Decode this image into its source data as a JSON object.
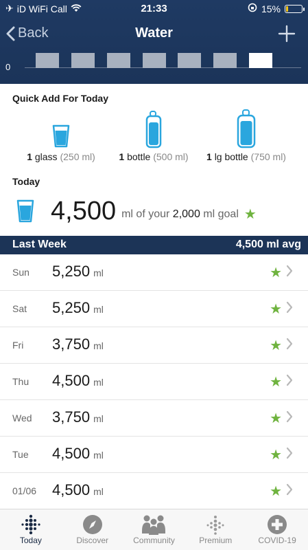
{
  "status": {
    "carrier": "iD WiFi Call",
    "time": "21:33",
    "battery": "15%",
    "battery_level": 0.15
  },
  "nav": {
    "back_label": "Back",
    "title": "Water"
  },
  "graph": {
    "zero_label": "0",
    "bars": 7
  },
  "quick_add": {
    "title": "Quick Add For Today",
    "items": [
      {
        "count": "1",
        "name": "glass",
        "volume": "(250 ml)",
        "icon": "glass-icon"
      },
      {
        "count": "1",
        "name": "bottle",
        "volume": "(500 ml)",
        "icon": "bottle-icon"
      },
      {
        "count": "1",
        "name": "lg bottle",
        "volume": "(750 ml)",
        "icon": "large-bottle-icon"
      }
    ]
  },
  "today": {
    "title": "Today",
    "amount": "4,500",
    "prefix": "ml of your",
    "goal": "2,000",
    "suffix": "ml goal"
  },
  "last_week": {
    "title": "Last Week",
    "avg": "4,500 ml avg",
    "unit": "ml",
    "rows": [
      {
        "day": "Sun",
        "amount": "5,250"
      },
      {
        "day": "Sat",
        "amount": "5,250"
      },
      {
        "day": "Fri",
        "amount": "3,750"
      },
      {
        "day": "Thu",
        "amount": "4,500"
      },
      {
        "day": "Wed",
        "amount": "3,750"
      },
      {
        "day": "Tue",
        "amount": "4,500"
      },
      {
        "day": "01/06",
        "amount": "4,500"
      }
    ]
  },
  "tabs": [
    {
      "label": "Today",
      "icon": "dots-grid-icon",
      "active": true
    },
    {
      "label": "Discover",
      "icon": "compass-icon",
      "active": false
    },
    {
      "label": "Community",
      "icon": "people-icon",
      "active": false
    },
    {
      "label": "Premium",
      "icon": "dots-icon",
      "active": false
    },
    {
      "label": "COVID-19",
      "icon": "plus-circle-icon",
      "active": false
    }
  ],
  "colors": {
    "header": "#1f3a63",
    "star": "#6fb33f",
    "water": "#2aa6de"
  }
}
